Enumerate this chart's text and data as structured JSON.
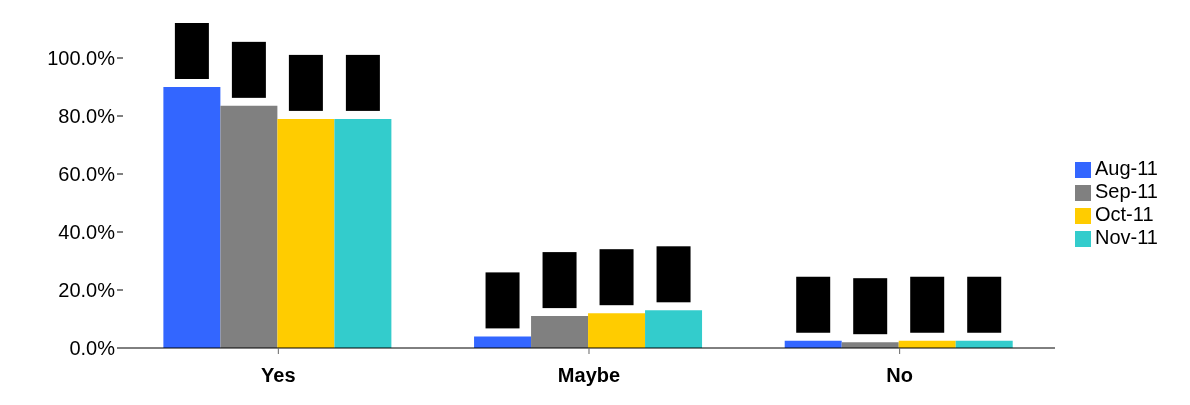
{
  "chart_data": {
    "type": "bar",
    "categories": [
      "Yes",
      "Maybe",
      "No"
    ],
    "series": [
      {
        "name": "Aug-11",
        "color": "#3366ff",
        "values": [
          90,
          4,
          2.5
        ]
      },
      {
        "name": "Sep-11",
        "color": "#808080",
        "values": [
          83.5,
          11,
          2
        ]
      },
      {
        "name": "Oct-11",
        "color": "#ffcc00",
        "values": [
          79,
          12,
          2.5
        ]
      },
      {
        "name": "Nov-11",
        "color": "#33cccc",
        "values": [
          79,
          13,
          2.5
        ]
      }
    ],
    "ylim": [
      0,
      100
    ],
    "yticks": [
      {
        "value": 0,
        "label": "0.0%"
      },
      {
        "value": 20,
        "label": "20.0%"
      },
      {
        "value": 40,
        "label": "40.0%"
      },
      {
        "value": 60,
        "label": "60.0%"
      },
      {
        "value": 80,
        "label": "80.0%"
      },
      {
        "value": 100,
        "label": "100.0%"
      }
    ],
    "grid": false,
    "legend": "right"
  }
}
